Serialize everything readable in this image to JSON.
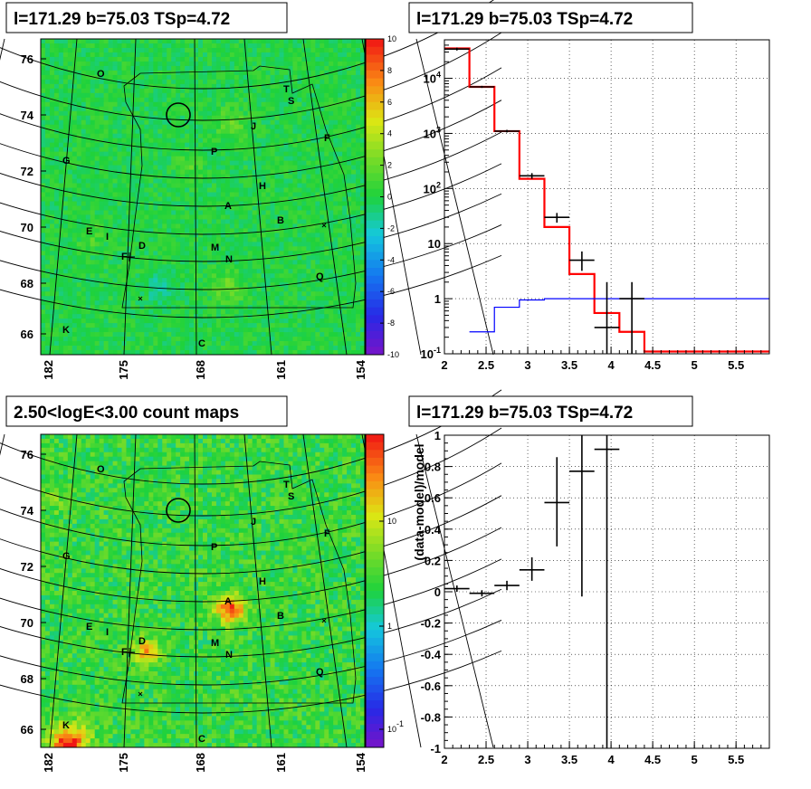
{
  "chart_data": [
    {
      "type": "heatmap",
      "title": "l=171.29 b=75.03 TSp=4.72",
      "xtick_labels": [
        "182",
        "175",
        "168",
        "161",
        "154"
      ],
      "ytick_labels": [
        "76",
        "74",
        "72",
        "70",
        "68",
        "66"
      ],
      "colorbar": {
        "min": -10,
        "max": 10,
        "ticks": [
          "10",
          "8",
          "6",
          "4",
          "2",
          "0",
          "-2",
          "-4",
          "-6",
          "-8",
          "-10"
        ]
      },
      "sources": [
        "O",
        "T",
        "S",
        "J",
        "F",
        "G",
        "P",
        "H",
        "A",
        "B",
        "E",
        "I",
        "D",
        "F",
        "M",
        "N",
        "Q",
        "K",
        "C"
      ]
    },
    {
      "type": "line",
      "title": "l=171.29 b=75.03 TSp=4.72",
      "xlim": [
        2,
        5.9
      ],
      "ylim": [
        0.1,
        50000
      ],
      "yscale": "log",
      "grid": true,
      "xtick_labels": [
        "2",
        "2.5",
        "3",
        "3.5",
        "4",
        "4.5",
        "5",
        "5.5"
      ],
      "ytick_labels": [
        "10^4",
        "10^3",
        "10^2",
        "10",
        "1",
        "10^-1"
      ],
      "series": [
        {
          "style": "step",
          "color": "#ff0000",
          "edges": [
            2.0,
            2.3,
            2.6,
            2.9,
            3.2,
            3.5,
            3.8,
            4.1,
            4.4,
            5.9
          ],
          "values": [
            35000,
            7000,
            1100,
            150,
            20,
            2.8,
            0.55,
            0.25,
            0.11
          ]
        },
        {
          "style": "step",
          "color": "#0000ff",
          "edges": [
            2.3,
            2.6,
            2.9,
            3.2,
            3.5,
            5.9
          ],
          "values": [
            0.25,
            0.7,
            0.95,
            1.0,
            1.0
          ]
        },
        {
          "style": "errorbar",
          "color": "#000000",
          "x": [
            2.15,
            2.45,
            2.75,
            3.05,
            3.35,
            3.65,
            3.95,
            4.25
          ],
          "y": [
            34000,
            7000,
            1100,
            170,
            30,
            5,
            0.3,
            1.0
          ],
          "ylow": [
            32000,
            6700,
            1040,
            150,
            24,
            3.2,
            0.1,
            0.1
          ],
          "yhigh": [
            36000,
            7300,
            1160,
            190,
            36,
            7.2,
            2,
            2
          ],
          "xerr": 0.15
        }
      ]
    },
    {
      "type": "heatmap",
      "title": "2.50<logE<3.00 count maps",
      "xtick_labels": [
        "182",
        "175",
        "168",
        "161",
        "154"
      ],
      "ytick_labels": [
        "76",
        "74",
        "72",
        "70",
        "68",
        "66"
      ],
      "colorbar": {
        "scale": "log",
        "ticks": [
          "10",
          "1",
          "10^-1"
        ]
      },
      "sources": [
        "O",
        "T",
        "S",
        "J",
        "F",
        "G",
        "P",
        "H",
        "A",
        "B",
        "E",
        "I",
        "D",
        "F",
        "M",
        "N",
        "Q",
        "K",
        "C"
      ]
    },
    {
      "type": "scatter",
      "title": "l=171.29 b=75.03 TSp=4.72",
      "ylabel": "(data-model)/model",
      "xlim": [
        2,
        5.9
      ],
      "ylim": [
        -1,
        1
      ],
      "grid": true,
      "xtick_labels": [
        "2",
        "2.5",
        "3",
        "3.5",
        "4",
        "4.5",
        "5",
        "5.5"
      ],
      "ytick_labels": [
        "1",
        "0.8",
        "0.6",
        "0.4",
        "0.2",
        "0",
        "-0.2",
        "-0.4",
        "-0.6",
        "-0.8",
        "-1"
      ],
      "points": {
        "x": [
          2.15,
          2.45,
          2.75,
          3.05,
          3.35,
          3.65,
          3.95
        ],
        "y": [
          0.02,
          -0.01,
          0.04,
          0.14,
          0.57,
          0.77,
          0.91
        ],
        "ylow": [
          0.0,
          -0.03,
          0.01,
          0.07,
          0.29,
          -0.03,
          -1.0
        ],
        "yhigh": [
          0.04,
          0.01,
          0.07,
          0.22,
          0.86,
          1.0,
          1.0
        ],
        "xerr": 0.15
      }
    }
  ],
  "labels": {
    "panel1_title": "l=171.29 b=75.03 TSp=4.72",
    "panel2_title": "l=171.29 b=75.03 TSp=4.72",
    "panel3_title": "2.50<logE<3.00 count maps",
    "panel4_title": "l=171.29 b=75.03 TSp=4.72",
    "panel4_ylabel": "(data-model)/model"
  },
  "colors": {
    "model_total": "#ff0000",
    "model_source": "#0000ff",
    "data": "#000000"
  }
}
